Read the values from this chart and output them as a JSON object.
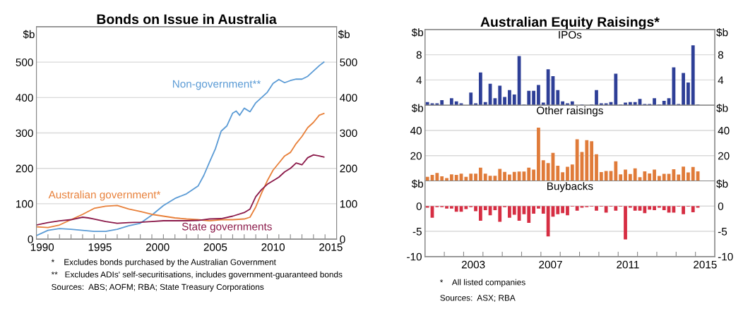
{
  "chart_data": [
    {
      "type": "line",
      "title": "Bonds on Issue in Australia",
      "ylabel": "$b",
      "y2label": "$b",
      "xlim": [
        1990,
        2016
      ],
      "ylim": [
        0,
        600
      ],
      "y2lim": [
        0,
        600
      ],
      "xticks": [
        {
          "value": 1990.5,
          "label": "1990"
        },
        {
          "value": 1995.5,
          "label": "1995"
        },
        {
          "value": 2000.5,
          "label": "2000"
        },
        {
          "value": 2005.5,
          "label": "2005"
        },
        {
          "value": 2010.5,
          "label": "2010"
        },
        {
          "value": 2015.5,
          "label": "2015"
        },
        {
          "value": 1991,
          "label": null
        },
        {
          "value": 1992,
          "label": null
        },
        {
          "value": 1993,
          "label": null
        },
        {
          "value": 1994,
          "label": null
        },
        {
          "value": 1995,
          "label": null
        },
        {
          "value": 1996,
          "label": null
        },
        {
          "value": 1997,
          "label": null
        },
        {
          "value": 1998,
          "label": null
        },
        {
          "value": 1999,
          "label": null
        },
        {
          "value": 2000,
          "label": null
        },
        {
          "value": 2001,
          "label": null
        },
        {
          "value": 2002,
          "label": null
        },
        {
          "value": 2003,
          "label": null
        },
        {
          "value": 2004,
          "label": null
        },
        {
          "value": 2005,
          "label": null
        },
        {
          "value": 2006,
          "label": null
        },
        {
          "value": 2007,
          "label": null
        },
        {
          "value": 2008,
          "label": null
        },
        {
          "value": 2009,
          "label": null
        },
        {
          "value": 2010,
          "label": null
        },
        {
          "value": 2011,
          "label": null
        },
        {
          "value": 2012,
          "label": null
        },
        {
          "value": 2013,
          "label": null
        },
        {
          "value": 2014,
          "label": null
        },
        {
          "value": 2015,
          "label": null
        }
      ],
      "yticks": [
        0,
        100,
        200,
        300,
        400,
        500
      ],
      "y2ticks": [
        0,
        100,
        200,
        300,
        400,
        500
      ],
      "grid": "y",
      "series": [
        {
          "name": "Non-government**",
          "color": "#5b9bd5",
          "x": [
            1990,
            1991,
            1992,
            1993,
            1994,
            1995,
            1996,
            1997,
            1998,
            1999,
            2000,
            2001,
            2002,
            2003,
            2004,
            2004.5,
            2005,
            2005.5,
            2006,
            2006.5,
            2007,
            2007.3,
            2007.6,
            2008,
            2008.5,
            2009,
            2009.5,
            2010,
            2010.5,
            2011,
            2011.5,
            2012,
            2012.5,
            2013,
            2013.5,
            2014,
            2014.5,
            2014.9
          ],
          "values": [
            10,
            25,
            30,
            28,
            25,
            22,
            22,
            28,
            38,
            45,
            68,
            95,
            115,
            128,
            150,
            180,
            218,
            255,
            305,
            320,
            356,
            362,
            350,
            370,
            360,
            385,
            400,
            415,
            440,
            451,
            442,
            448,
            452,
            452,
            460,
            475,
            490,
            500
          ]
        },
        {
          "name": "Australian government*",
          "color": "#e8803a",
          "x": [
            1990,
            1991,
            1992,
            1993,
            1994,
            1995,
            1996,
            1997,
            1998,
            1999,
            2000,
            2001,
            2002,
            2003,
            2004,
            2005,
            2006,
            2007,
            2008,
            2008.5,
            2009,
            2009.5,
            2010,
            2010.5,
            2011,
            2011.5,
            2012,
            2012.5,
            2013,
            2013.5,
            2014,
            2014.5,
            2014.9
          ],
          "values": [
            35,
            33,
            40,
            55,
            70,
            87,
            93,
            95,
            85,
            78,
            70,
            65,
            60,
            57,
            55,
            52,
            55,
            55,
            57,
            62,
            91,
            130,
            165,
            195,
            215,
            235,
            245,
            270,
            290,
            315,
            330,
            350,
            355
          ]
        },
        {
          "name": "State governments",
          "color": "#8b1a4a",
          "x": [
            1990,
            1991,
            1992,
            1993,
            1994,
            1994.5,
            1995,
            1996,
            1997,
            1998,
            1999,
            2000,
            2001,
            2002,
            2003,
            2004,
            2005,
            2006,
            2007,
            2008,
            2008.5,
            2009,
            2009.5,
            2010,
            2011,
            2011.5,
            2012,
            2012.5,
            2013,
            2013.5,
            2014,
            2014.5,
            2014.9
          ],
          "values": [
            40,
            47,
            52,
            55,
            62,
            60,
            57,
            50,
            45,
            47,
            48,
            50,
            52,
            52,
            52,
            53,
            57,
            58,
            65,
            75,
            85,
            120,
            140,
            155,
            175,
            190,
            200,
            215,
            210,
            230,
            238,
            235,
            232
          ]
        }
      ],
      "annotations": [
        "*    Excludes bonds purchased by the Australian Government",
        "**   Excludes ADIs' self-securitisations, includes government-guaranteed bonds",
        "Sources:  ABS; AOFM; RBA; State Treasury Corporations"
      ]
    },
    {
      "type": "bar",
      "title": "Australian Equity Raisings*",
      "subtitle": "IPOs",
      "ylabel": "$b",
      "y2label": "$b",
      "tick_labels": "y",
      "xlim": [
        2001,
        2016
      ],
      "ylim": [
        0,
        12
      ],
      "y2lim": [
        0,
        12
      ],
      "yticks": [
        4,
        8
      ],
      "y2ticks": [
        4,
        8
      ],
      "grid": "y",
      "x": [
        2001.125,
        2001.375,
        2001.625,
        2001.875,
        2002.125,
        2002.375,
        2002.625,
        2002.875,
        2003.125,
        2003.375,
        2003.625,
        2003.875,
        2004.125,
        2004.375,
        2004.625,
        2004.875,
        2005.125,
        2005.375,
        2005.625,
        2005.875,
        2006.125,
        2006.375,
        2006.625,
        2006.875,
        2007.125,
        2007.375,
        2007.625,
        2007.875,
        2008.125,
        2008.375,
        2008.625,
        2008.875,
        2009.125,
        2009.375,
        2009.625,
        2009.875,
        2010.125,
        2010.375,
        2010.625,
        2010.875,
        2011.125,
        2011.375,
        2011.625,
        2011.875,
        2012.125,
        2012.375,
        2012.625,
        2012.875,
        2013.125,
        2013.375,
        2013.625,
        2013.875,
        2014.125,
        2014.375,
        2014.625,
        2014.875,
        2015.125
      ],
      "series": [
        {
          "color": "#2e3f97",
          "values": [
            0.5,
            0.3,
            0.3,
            0.8,
            0,
            1.1,
            0.6,
            0.3,
            0,
            2.0,
            0.3,
            5.2,
            0.5,
            3.4,
            1.1,
            3.1,
            1.3,
            2.4,
            1.7,
            7.8,
            0.1,
            2.3,
            2.3,
            3.2,
            0.4,
            5.7,
            4.6,
            2.4,
            0.6,
            0.3,
            0.6,
            0,
            0.1,
            0,
            0.1,
            2.4,
            0.3,
            0.3,
            0.5,
            5.0,
            0.1,
            0.4,
            0.5,
            0.5,
            1.0,
            0.2,
            0.2,
            1.1,
            0.1,
            0.7,
            1.1,
            6.0,
            0.2,
            5.1,
            3.6,
            9.5,
            0.1
          ]
        }
      ]
    },
    {
      "type": "bar",
      "subtitle": "Other raisings",
      "ylabel": "$b",
      "y2label": "$b",
      "tick_labels": "y",
      "xlim": [
        2001,
        2016
      ],
      "ylim": [
        0,
        60
      ],
      "y2lim": [
        0,
        60
      ],
      "yticks": [
        20,
        40
      ],
      "y2ticks": [
        20,
        40
      ],
      "grid": "y",
      "x": [
        2001.125,
        2001.375,
        2001.625,
        2001.875,
        2002.125,
        2002.375,
        2002.625,
        2002.875,
        2003.125,
        2003.375,
        2003.625,
        2003.875,
        2004.125,
        2004.375,
        2004.625,
        2004.875,
        2005.125,
        2005.375,
        2005.625,
        2005.875,
        2006.125,
        2006.375,
        2006.625,
        2006.875,
        2007.125,
        2007.375,
        2007.625,
        2007.875,
        2008.125,
        2008.375,
        2008.625,
        2008.875,
        2009.125,
        2009.375,
        2009.625,
        2009.875,
        2010.125,
        2010.375,
        2010.625,
        2010.875,
        2011.125,
        2011.375,
        2011.625,
        2011.875,
        2012.125,
        2012.375,
        2012.625,
        2012.875,
        2013.125,
        2013.375,
        2013.625,
        2013.875,
        2014.125,
        2014.375,
        2014.625,
        2014.875,
        2015.125
      ],
      "series": [
        {
          "color": "#e07b39",
          "values": [
            3.2,
            4.7,
            6.3,
            3.6,
            2.2,
            5.2,
            4.7,
            5.8,
            3.2,
            5.8,
            5.8,
            10.5,
            5.8,
            4.1,
            4.1,
            9.5,
            7.2,
            5.0,
            7.2,
            7.4,
            7.4,
            10.5,
            9.0,
            42.3,
            16.4,
            14.1,
            22.2,
            12.1,
            6.8,
            11.2,
            13.0,
            33.0,
            22.9,
            32.3,
            31.5,
            21.1,
            7.0,
            7.9,
            7.9,
            15.5,
            5.2,
            9.0,
            5.4,
            9.9,
            2.9,
            7.6,
            5.9,
            9.0,
            4.0,
            5.6,
            5.6,
            9.2,
            5.0,
            11.4,
            6.7,
            11.0,
            7.6
          ]
        }
      ]
    },
    {
      "type": "bar",
      "subtitle": "Buybacks",
      "ylabel": "$b",
      "y2label": "$b",
      "xlim": [
        2001,
        2016
      ],
      "ylim": [
        -10,
        5
      ],
      "y2lim": [
        -10,
        5
      ],
      "yticks": [
        -10,
        -5,
        0
      ],
      "y2ticks": [
        -10,
        -5,
        0
      ],
      "grid": "y",
      "xticks": [
        {
          "value": 2003.5,
          "label": "2003"
        },
        {
          "value": 2007.5,
          "label": "2007"
        },
        {
          "value": 2011.5,
          "label": "2011"
        },
        {
          "value": 2015.5,
          "label": "2015"
        },
        {
          "value": 2002,
          "label": null
        },
        {
          "value": 2003,
          "label": null
        },
        {
          "value": 2004,
          "label": null
        },
        {
          "value": 2005,
          "label": null
        },
        {
          "value": 2006,
          "label": null
        },
        {
          "value": 2007,
          "label": null
        },
        {
          "value": 2008,
          "label": null
        },
        {
          "value": 2009,
          "label": null
        },
        {
          "value": 2010,
          "label": null
        },
        {
          "value": 2011,
          "label": null
        },
        {
          "value": 2012,
          "label": null
        },
        {
          "value": 2013,
          "label": null
        },
        {
          "value": 2014,
          "label": null
        },
        {
          "value": 2015,
          "label": null
        }
      ],
      "x": [
        2001.125,
        2001.375,
        2001.625,
        2001.875,
        2002.125,
        2002.375,
        2002.625,
        2002.875,
        2003.125,
        2003.375,
        2003.625,
        2003.875,
        2004.125,
        2004.375,
        2004.625,
        2004.875,
        2005.125,
        2005.375,
        2005.625,
        2005.875,
        2006.125,
        2006.375,
        2006.625,
        2006.875,
        2007.125,
        2007.375,
        2007.625,
        2007.875,
        2008.125,
        2008.375,
        2008.625,
        2008.875,
        2009.125,
        2009.375,
        2009.625,
        2009.875,
        2010.125,
        2010.375,
        2010.625,
        2010.875,
        2011.125,
        2011.375,
        2011.625,
        2011.875,
        2012.125,
        2012.375,
        2012.625,
        2012.875,
        2013.125,
        2013.375,
        2013.625,
        2013.875,
        2014.125,
        2014.375,
        2014.625,
        2014.875,
        2015.125
      ],
      "series": [
        {
          "color": "#d62e43",
          "values": [
            -0.3,
            -2.3,
            -0.2,
            -0.2,
            -0.5,
            -0.5,
            -1.1,
            -1.1,
            -0.6,
            -0.2,
            -1.0,
            -2.9,
            -0.8,
            -1.8,
            -0.8,
            -3.1,
            -0.2,
            -2.3,
            -1.7,
            -2.9,
            -1.6,
            -3.3,
            -1.5,
            -0.5,
            -1.5,
            -6.0,
            -2.1,
            -1.6,
            -1.4,
            -1.8,
            -0.1,
            -0.9,
            -0.3,
            -0.2,
            -0.1,
            -0.9,
            -0.1,
            -1.3,
            -0.1,
            -0.9,
            -0.1,
            -6.6,
            -0.3,
            -0.9,
            -0.9,
            -1.4,
            -0.7,
            -0.8,
            -0.3,
            -0.8,
            -1.3,
            -1.3,
            -0.1,
            -1.6,
            -0.1,
            -1.2,
            -0.3
          ]
        }
      ],
      "annotations": [
        "*    All listed companies",
        "Sources:  ASX; RBA"
      ]
    }
  ]
}
